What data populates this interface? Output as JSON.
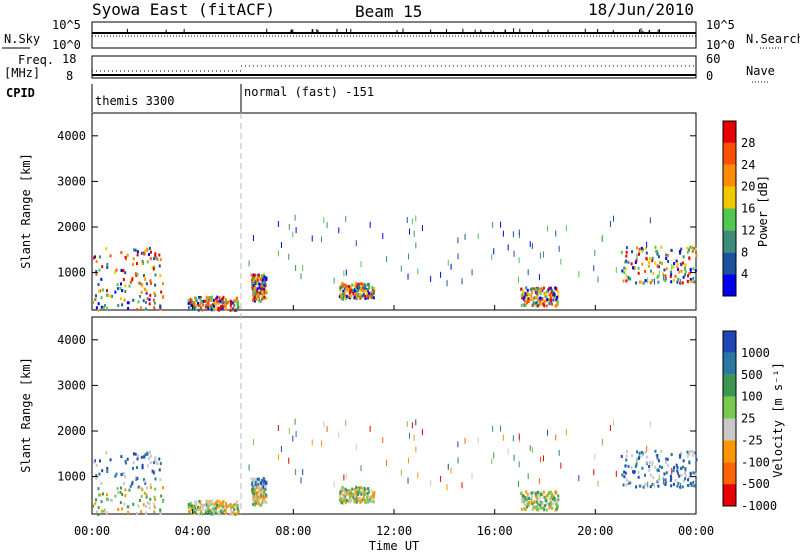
{
  "header": {
    "title": "Syowa East (fitACF)",
    "beam": "Beam 15",
    "date": "18/Jun/2010"
  },
  "top_panels": {
    "nsky_label": "N.Sky",
    "nsky_ticks": [
      "10^5",
      "10^0"
    ],
    "nsearch_label": "N.Search",
    "nsearch_ticks": [
      "10^5",
      "10^0"
    ],
    "freq_label": "Freq.",
    "freq_unit": "[MHz]",
    "freq_ticks": [
      "18",
      "8"
    ],
    "nave_label": "Nave",
    "nave_ticks": [
      "60",
      "0"
    ],
    "cpid_label": "CPID",
    "cpid_segments": [
      "themis 3300",
      "normal (fast) -151"
    ]
  },
  "x_axis": {
    "label": "Time UT",
    "ticks": [
      "00:00",
      "04:00",
      "08:00",
      "12:00",
      "16:00",
      "20:00",
      "00:00"
    ]
  },
  "power_panel": {
    "ylabel": "Slant Range [km]",
    "yticks": [
      "1000",
      "2000",
      "3000",
      "4000"
    ],
    "colorbar_label": "Power [dB]",
    "colorbar_ticks": [
      "4",
      "8",
      "12",
      "16",
      "20",
      "24",
      "28"
    ],
    "colors": [
      "#0000ee",
      "#1e50a0",
      "#3c8c78",
      "#50c850",
      "#f0c800",
      "#ff8c00",
      "#ff5000",
      "#e60000"
    ]
  },
  "velocity_panel": {
    "ylabel": "Slant Range [km]",
    "yticks": [
      "1000",
      "2000",
      "3000",
      "4000"
    ],
    "colorbar_label": "Velocity [m s⁻¹]",
    "colorbar_ticks": [
      "1000",
      "500",
      "100",
      "25",
      "-25",
      "-100",
      "-500",
      "-1000"
    ],
    "colors": [
      "#1e46b4",
      "#2878a0",
      "#3c9650",
      "#78c850",
      "#c8c8c8",
      "#ff9600",
      "#ff6400",
      "#e60000"
    ]
  },
  "chart_data": {
    "type": "heatmap",
    "x_range_hours": [
      0,
      24
    ],
    "y_range_km": [
      180,
      4500
    ],
    "mode_change_time_hours": 6.0,
    "scatter_regions": [
      {
        "t_start": 0.0,
        "t_end": 2.8,
        "r_start": 200,
        "r_end": 1600
      },
      {
        "t_start": 3.8,
        "t_end": 5.8,
        "r_start": 200,
        "r_end": 500
      },
      {
        "t_start": 6.3,
        "t_end": 6.9,
        "r_start": 400,
        "r_end": 1000
      },
      {
        "t_start": 9.8,
        "t_end": 11.2,
        "r_start": 450,
        "r_end": 800
      },
      {
        "t_start": 17.0,
        "t_end": 18.5,
        "r_start": 300,
        "r_end": 700
      },
      {
        "t_start": 21.0,
        "t_end": 24.0,
        "r_start": 800,
        "r_end": 1600
      }
    ]
  }
}
